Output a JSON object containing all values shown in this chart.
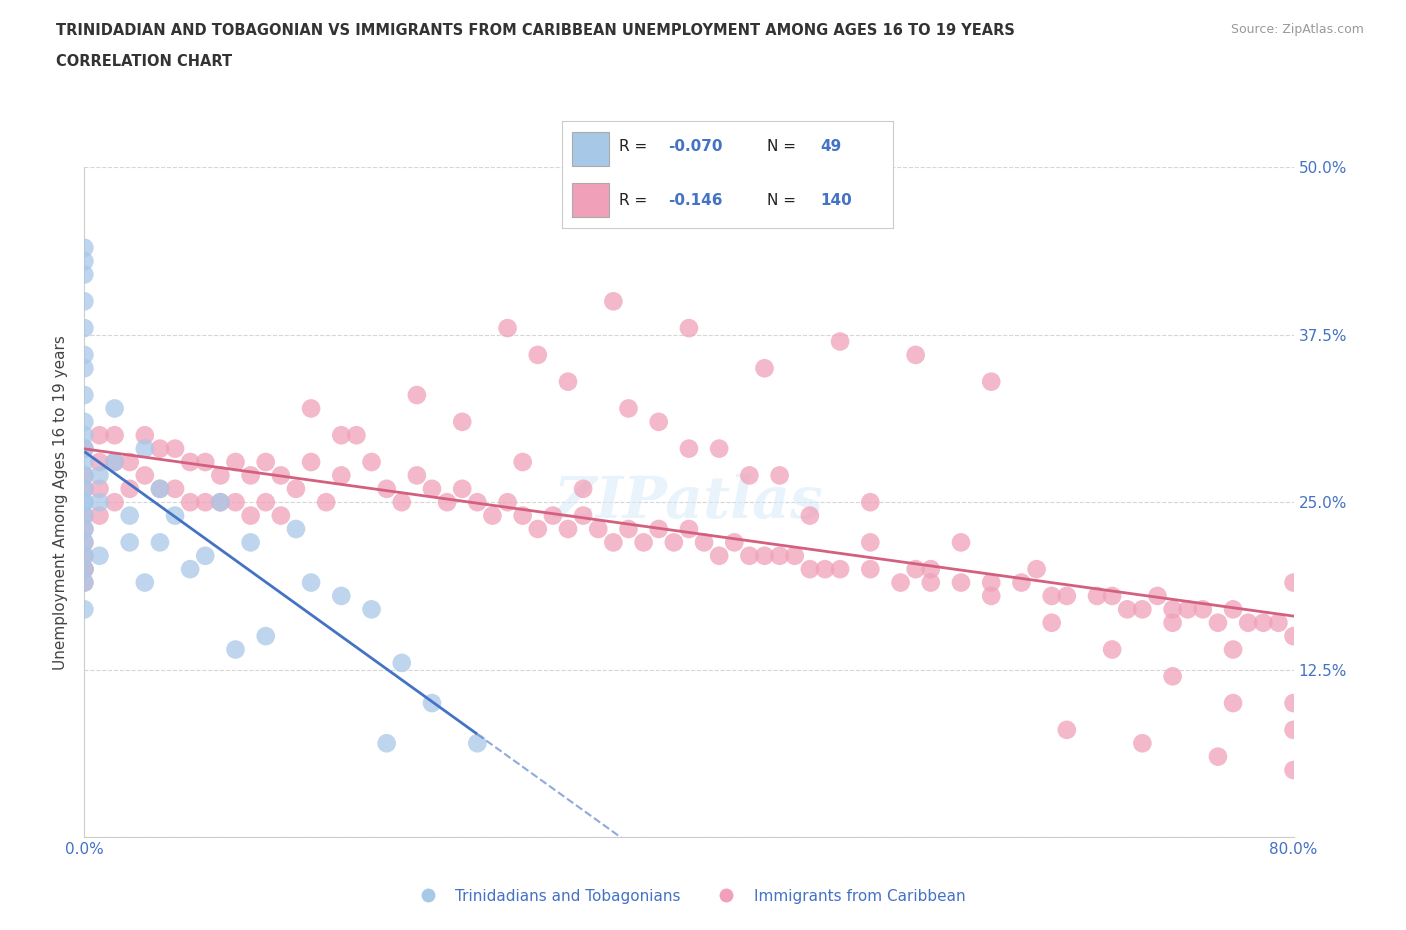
{
  "title": "TRINIDADIAN AND TOBAGONIAN VS IMMIGRANTS FROM CARIBBEAN UNEMPLOYMENT AMONG AGES 16 TO 19 YEARS",
  "subtitle": "CORRELATION CHART",
  "source": "Source: ZipAtlas.com",
  "ylabel": "Unemployment Among Ages 16 to 19 years",
  "xlim": [
    0.0,
    0.8
  ],
  "ylim": [
    0.0,
    0.5
  ],
  "blue_R": -0.07,
  "blue_N": 49,
  "pink_R": -0.146,
  "pink_N": 140,
  "blue_color": "#A8C8E8",
  "pink_color": "#F0A0B8",
  "blue_line_color": "#4472C4",
  "pink_line_color": "#D46080",
  "legend1_label": "Trinidadians and Tobagonians",
  "legend2_label": "Immigrants from Caribbean",
  "grid_color": "#CCCCCC",
  "tick_color": "#4472C4",
  "title_color": "#333333",
  "bg_color": "#FFFFFF",
  "blue_scatter_x": [
    0.0,
    0.0,
    0.0,
    0.0,
    0.0,
    0.0,
    0.0,
    0.0,
    0.0,
    0.0,
    0.0,
    0.0,
    0.0,
    0.0,
    0.0,
    0.0,
    0.0,
    0.0,
    0.0,
    0.0,
    0.0,
    0.0,
    0.0,
    0.01,
    0.01,
    0.01,
    0.02,
    0.02,
    0.03,
    0.03,
    0.04,
    0.04,
    0.05,
    0.05,
    0.06,
    0.07,
    0.08,
    0.09,
    0.1,
    0.11,
    0.12,
    0.14,
    0.15,
    0.17,
    0.19,
    0.2,
    0.21,
    0.23,
    0.26
  ],
  "blue_scatter_y": [
    0.44,
    0.43,
    0.42,
    0.4,
    0.38,
    0.36,
    0.35,
    0.33,
    0.31,
    0.3,
    0.29,
    0.28,
    0.27,
    0.26,
    0.25,
    0.25,
    0.24,
    0.23,
    0.22,
    0.21,
    0.2,
    0.19,
    0.17,
    0.27,
    0.25,
    0.21,
    0.32,
    0.28,
    0.24,
    0.22,
    0.29,
    0.19,
    0.26,
    0.22,
    0.24,
    0.2,
    0.21,
    0.25,
    0.14,
    0.22,
    0.15,
    0.23,
    0.19,
    0.18,
    0.17,
    0.07,
    0.13,
    0.1,
    0.07
  ],
  "pink_scatter_x": [
    0.0,
    0.0,
    0.0,
    0.0,
    0.0,
    0.0,
    0.0,
    0.0,
    0.0,
    0.0,
    0.01,
    0.01,
    0.01,
    0.01,
    0.02,
    0.02,
    0.02,
    0.03,
    0.03,
    0.04,
    0.04,
    0.05,
    0.05,
    0.06,
    0.06,
    0.07,
    0.07,
    0.08,
    0.08,
    0.09,
    0.09,
    0.1,
    0.1,
    0.11,
    0.11,
    0.12,
    0.12,
    0.13,
    0.13,
    0.14,
    0.15,
    0.15,
    0.16,
    0.17,
    0.17,
    0.18,
    0.19,
    0.2,
    0.21,
    0.22,
    0.23,
    0.24,
    0.25,
    0.26,
    0.27,
    0.28,
    0.29,
    0.3,
    0.31,
    0.32,
    0.33,
    0.34,
    0.35,
    0.36,
    0.37,
    0.38,
    0.39,
    0.4,
    0.41,
    0.42,
    0.43,
    0.44,
    0.45,
    0.46,
    0.47,
    0.48,
    0.49,
    0.5,
    0.52,
    0.54,
    0.55,
    0.56,
    0.58,
    0.6,
    0.62,
    0.64,
    0.65,
    0.67,
    0.69,
    0.7,
    0.71,
    0.72,
    0.73,
    0.74,
    0.75,
    0.76,
    0.77,
    0.78,
    0.79,
    0.8,
    0.5,
    0.55,
    0.6,
    0.35,
    0.4,
    0.45,
    0.28,
    0.3,
    0.32,
    0.38,
    0.42,
    0.46,
    0.52,
    0.58,
    0.63,
    0.68,
    0.72,
    0.76,
    0.8,
    0.22,
    0.25,
    0.29,
    0.33,
    0.36,
    0.4,
    0.44,
    0.48,
    0.52,
    0.56,
    0.6,
    0.64,
    0.68,
    0.72,
    0.76,
    0.8,
    0.65,
    0.7,
    0.75,
    0.8,
    0.8
  ],
  "pink_scatter_y": [
    0.29,
    0.27,
    0.26,
    0.24,
    0.23,
    0.22,
    0.21,
    0.2,
    0.2,
    0.19,
    0.3,
    0.28,
    0.26,
    0.24,
    0.3,
    0.28,
    0.25,
    0.28,
    0.26,
    0.3,
    0.27,
    0.29,
    0.26,
    0.29,
    0.26,
    0.28,
    0.25,
    0.28,
    0.25,
    0.27,
    0.25,
    0.28,
    0.25,
    0.27,
    0.24,
    0.28,
    0.25,
    0.27,
    0.24,
    0.26,
    0.32,
    0.28,
    0.25,
    0.3,
    0.27,
    0.3,
    0.28,
    0.26,
    0.25,
    0.27,
    0.26,
    0.25,
    0.26,
    0.25,
    0.24,
    0.25,
    0.24,
    0.23,
    0.24,
    0.23,
    0.24,
    0.23,
    0.22,
    0.23,
    0.22,
    0.23,
    0.22,
    0.23,
    0.22,
    0.21,
    0.22,
    0.21,
    0.21,
    0.21,
    0.21,
    0.2,
    0.2,
    0.2,
    0.2,
    0.19,
    0.2,
    0.19,
    0.19,
    0.19,
    0.19,
    0.18,
    0.18,
    0.18,
    0.17,
    0.17,
    0.18,
    0.17,
    0.17,
    0.17,
    0.16,
    0.17,
    0.16,
    0.16,
    0.16,
    0.15,
    0.37,
    0.36,
    0.34,
    0.4,
    0.38,
    0.35,
    0.38,
    0.36,
    0.34,
    0.31,
    0.29,
    0.27,
    0.25,
    0.22,
    0.2,
    0.18,
    0.16,
    0.14,
    0.1,
    0.33,
    0.31,
    0.28,
    0.26,
    0.32,
    0.29,
    0.27,
    0.24,
    0.22,
    0.2,
    0.18,
    0.16,
    0.14,
    0.12,
    0.1,
    0.08,
    0.08,
    0.07,
    0.06,
    0.05,
    0.19
  ]
}
